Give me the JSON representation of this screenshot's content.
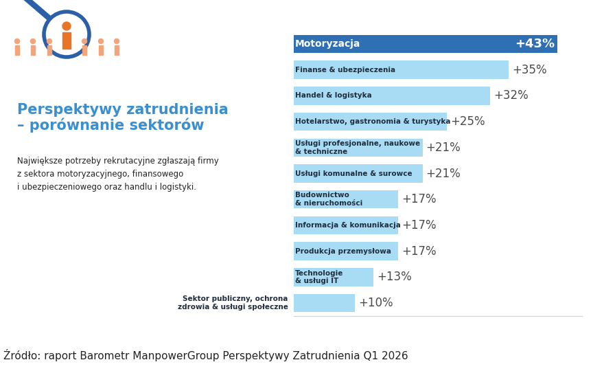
{
  "chart_data": {
    "type": "bar",
    "orientation": "horizontal",
    "title": "Perspektywy zatrudnienia\n– porównanie sektorów",
    "subtitle": "Największe potrzeby rekrutacyjne zgłaszają firmy\nz sektora motoryzacyjnego, finansowego\ni ubezpieczeniowego oraz handlu i logistyki.",
    "source": "Źródło: raport Barometr ManpowerGroup Perspektywy Zatrudnienia Q1 2026",
    "categories": [
      "Motoryzacja",
      "Finanse & ubezpieczenia",
      "Handel & logistyka",
      "Hotelarstwo, gastronomia & turystyka",
      "Usługi profesjonalne, naukowe\n& techniczne",
      "Usługi komunalne & surowce",
      "Budownictwo\n& nieruchomości",
      "Informacja & komunikacja",
      "Produkcja przemysłowa",
      "Technologie\n& usługi IT",
      "Sektor publiczny, ochrona\nzdrowia & usługi społeczne"
    ],
    "values": [
      43,
      35,
      32,
      25,
      21,
      21,
      17,
      17,
      17,
      13,
      10
    ],
    "value_labels": [
      "+43%",
      "+35%",
      "+32%",
      "+25%",
      "+21%",
      "+21%",
      "+17%",
      "+17%",
      "+17%",
      "+13%",
      "+10%"
    ],
    "colors": [
      "#2f6fb3",
      "#a8dcf5",
      "#a8dcf5",
      "#a8dcf5",
      "#a8dcf5",
      "#a8dcf5",
      "#a8dcf5",
      "#a8dcf5",
      "#a8dcf5",
      "#a8dcf5",
      "#a8dcf5"
    ],
    "xlim": [
      0,
      47
    ],
    "tick_labels": false,
    "data_labels": true,
    "grid": false
  }
}
